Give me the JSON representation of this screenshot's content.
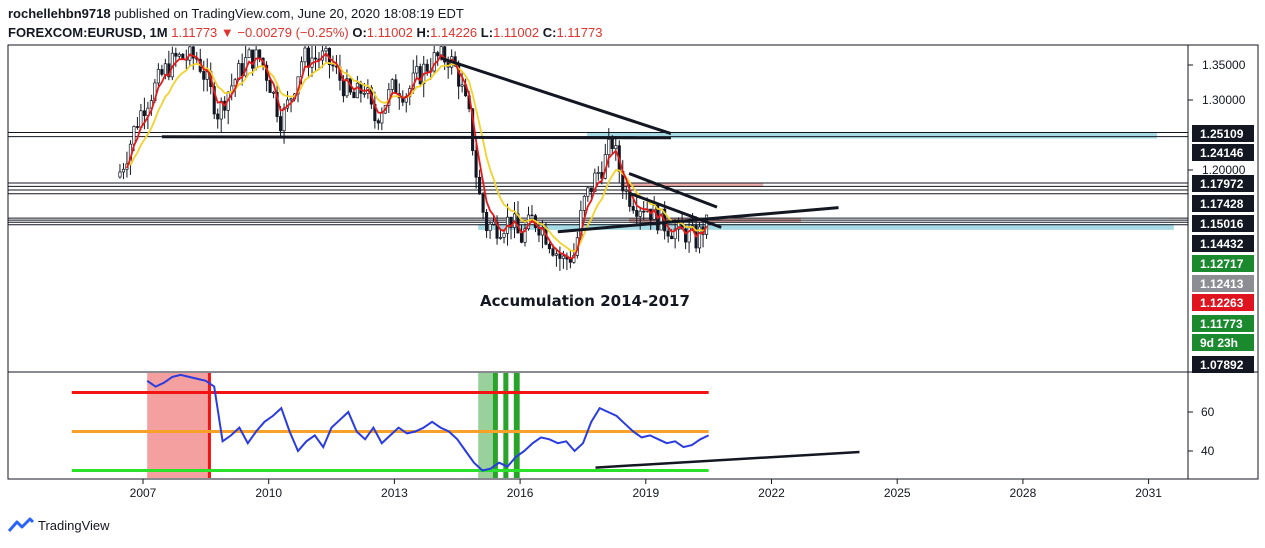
{
  "header": {
    "author": "rochellehbn9718",
    "published_text": "published on TradingView.com, June 20, 2020 18:08:19 EDT",
    "symbol": "FOREXCOM:EURUSD, 1M",
    "price": "1.11773",
    "arrow": "▼",
    "change": "−0.00279 (−0.25%)",
    "o_label": "O:",
    "o_val": "1.11002",
    "h_label": "H:",
    "h_val": "1.14226",
    "l_label": "L:",
    "l_val": "1.11002",
    "c_label": "C:",
    "c_val": "1.11773"
  },
  "annotation": "Accumulation 2014-2017",
  "footer": {
    "brand": "TradingView"
  },
  "colors": {
    "up": "#26a69a",
    "down": "#ef5350",
    "candle": "#131722",
    "ema_red": "#e41a1a",
    "ema_yellow": "#f2d22b",
    "cyan_zone": "#a6dbe6",
    "red_zone": "#f0b0aa",
    "rsi_line": "#2a3bdf",
    "level_red": "#f21313",
    "level_orange": "#f7a02a",
    "level_green": "#2ae22a",
    "badge_green": "#1b8a2f",
    "badge_red": "#e0141e",
    "badge_gray": "#8d8e93",
    "badge_black": "#131722"
  },
  "chart_data": [
    {
      "type": "candlestick",
      "title": "FOREXCOM:EURUSD, 1M",
      "x_ticks": [
        "2007",
        "2010",
        "2013",
        "2016",
        "2019",
        "2022",
        "2025",
        "2028",
        "2031"
      ],
      "y_ticks": [
        "1.35000",
        "1.30000",
        "1.20000"
      ],
      "ylim": [
        1.06,
        1.36
      ],
      "xlim": [
        2004.7,
        2032.2
      ],
      "price_labels": [
        {
          "value": "1.25109",
          "style": "black"
        },
        {
          "value": "1.24146",
          "style": "black"
        },
        {
          "value": "1.17972",
          "style": "black"
        },
        {
          "value": "1.17428",
          "style": "black"
        },
        {
          "value": "1.15016",
          "style": "black"
        },
        {
          "value": "1.14432",
          "style": "black"
        },
        {
          "value": "1.12717",
          "style": "green"
        },
        {
          "value": "1.12413",
          "style": "gray"
        },
        {
          "value": "1.12263",
          "style": "red"
        },
        {
          "value": "1.11773",
          "style": "green"
        },
        {
          "value": "9d 23h",
          "style": "green"
        },
        {
          "value": "1.07892",
          "style": "black"
        }
      ],
      "close_series": {
        "x": [
          2006.4,
          2006.6,
          2006.8,
          2007.0,
          2007.2,
          2007.5,
          2007.8,
          2008.0,
          2008.3,
          2008.5,
          2008.8,
          2009.0,
          2009.2,
          2009.5,
          2009.8,
          2010.0,
          2010.3,
          2010.5,
          2010.8,
          2011.0,
          2011.3,
          2011.5,
          2011.8,
          2012.0,
          2012.3,
          2012.5,
          2012.8,
          2013.0,
          2013.3,
          2013.5,
          2013.8,
          2014.0,
          2014.3,
          2014.5,
          2014.8,
          2015.0,
          2015.2,
          2015.5,
          2015.8,
          2016.0,
          2016.3,
          2016.5,
          2016.8,
          2017.0,
          2017.3,
          2017.5,
          2017.8,
          2018.0,
          2018.2,
          2018.5,
          2018.8,
          2019.0,
          2019.3,
          2019.5,
          2019.8,
          2020.0,
          2020.2,
          2020.4
        ],
        "y": [
          1.19,
          1.22,
          1.26,
          1.29,
          1.31,
          1.34,
          1.36,
          1.36,
          1.36,
          1.33,
          1.28,
          1.31,
          1.33,
          1.36,
          1.36,
          1.33,
          1.27,
          1.3,
          1.36,
          1.36,
          1.36,
          1.35,
          1.32,
          1.3,
          1.32,
          1.27,
          1.3,
          1.32,
          1.31,
          1.33,
          1.35,
          1.36,
          1.36,
          1.34,
          1.27,
          1.17,
          1.12,
          1.12,
          1.13,
          1.1,
          1.13,
          1.12,
          1.09,
          1.07,
          1.08,
          1.15,
          1.19,
          1.21,
          1.24,
          1.17,
          1.15,
          1.15,
          1.13,
          1.12,
          1.11,
          1.11,
          1.1,
          1.12
        ]
      }
    },
    {
      "type": "line",
      "title": "",
      "y_ticks": [
        "60",
        "40"
      ],
      "ylim": [
        26,
        78
      ],
      "levels": [
        70,
        50,
        30
      ],
      "series": [
        {
          "x": [
            2007.1,
            2007.3,
            2007.5,
            2007.7,
            2007.9,
            2008.1,
            2008.3,
            2008.5,
            2008.7,
            2008.9,
            2009.1,
            2009.3,
            2009.5,
            2009.7,
            2009.9,
            2010.1,
            2010.3,
            2010.5,
            2010.7,
            2010.9,
            2011.1,
            2011.3,
            2011.5,
            2011.7,
            2011.9,
            2012.1,
            2012.3,
            2012.5,
            2012.7,
            2012.9,
            2013.1,
            2013.3,
            2013.5,
            2013.7,
            2013.9,
            2014.1,
            2014.3,
            2014.5,
            2014.7,
            2014.9,
            2015.1,
            2015.3,
            2015.5,
            2015.7,
            2015.9,
            2016.1,
            2016.3,
            2016.5,
            2016.7,
            2016.9,
            2017.1,
            2017.3,
            2017.5,
            2017.7,
            2017.9,
            2018.1,
            2018.3,
            2018.5,
            2018.7,
            2018.9,
            2019.1,
            2019.3,
            2019.5,
            2019.7,
            2019.9,
            2020.1,
            2020.3,
            2020.5
          ],
          "values": [
            76,
            73,
            75,
            78,
            79,
            78,
            77,
            76,
            73,
            45,
            48,
            52,
            44,
            50,
            55,
            58,
            62,
            50,
            40,
            45,
            48,
            42,
            52,
            56,
            60,
            50,
            46,
            52,
            44,
            48,
            52,
            49,
            50,
            52,
            55,
            52,
            50,
            46,
            40,
            34,
            30,
            31,
            34,
            32,
            37,
            40,
            44,
            47,
            46,
            44,
            45,
            40,
            44,
            55,
            62,
            60,
            58,
            54,
            50,
            47,
            48,
            46,
            44,
            45,
            42,
            43,
            46,
            48
          ]
        }
      ]
    }
  ]
}
